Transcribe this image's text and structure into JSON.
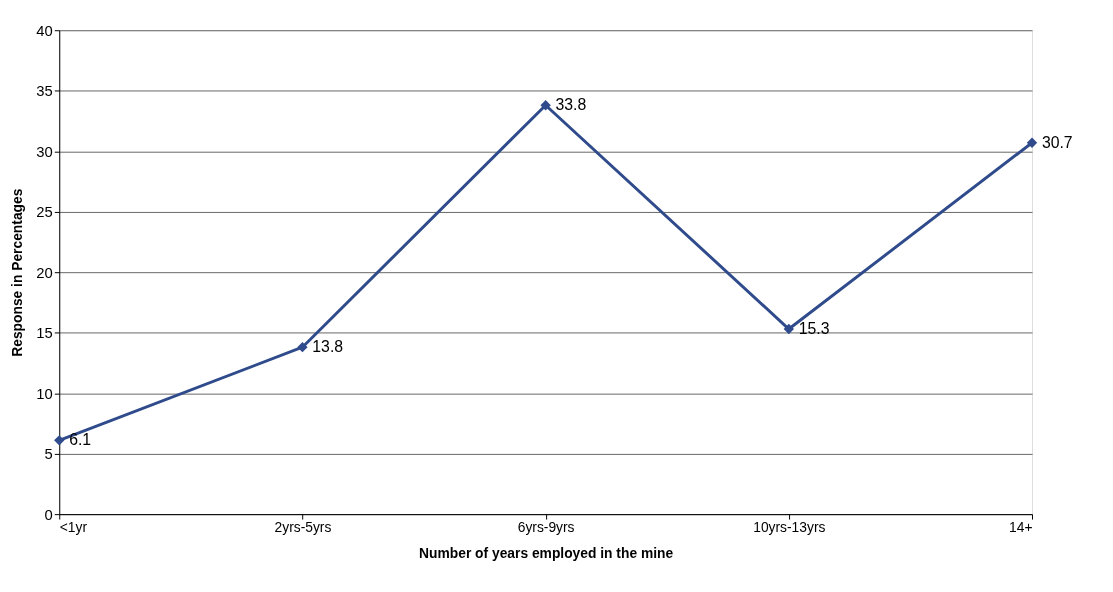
{
  "chart_data": {
    "type": "line",
    "categories": [
      "<1yr",
      "2yrs-5yrs",
      "6yrs-9yrs",
      "10yrs-13yrs",
      "14+"
    ],
    "series": [
      {
        "color": "#2f4b8c",
        "values": [
          6.1,
          13.8,
          33.8,
          15.3,
          30.7
        ]
      }
    ],
    "xlabel": "Number of years employed  in the mine",
    "ylabel": "Response in Percentages",
    "ylim": [
      0,
      40
    ],
    "yticks": [
      0,
      5,
      10,
      15,
      20,
      25,
      30,
      35,
      40
    ],
    "grid": "y",
    "marker": "diamond",
    "line_style": "solid",
    "data_labels": true
  }
}
